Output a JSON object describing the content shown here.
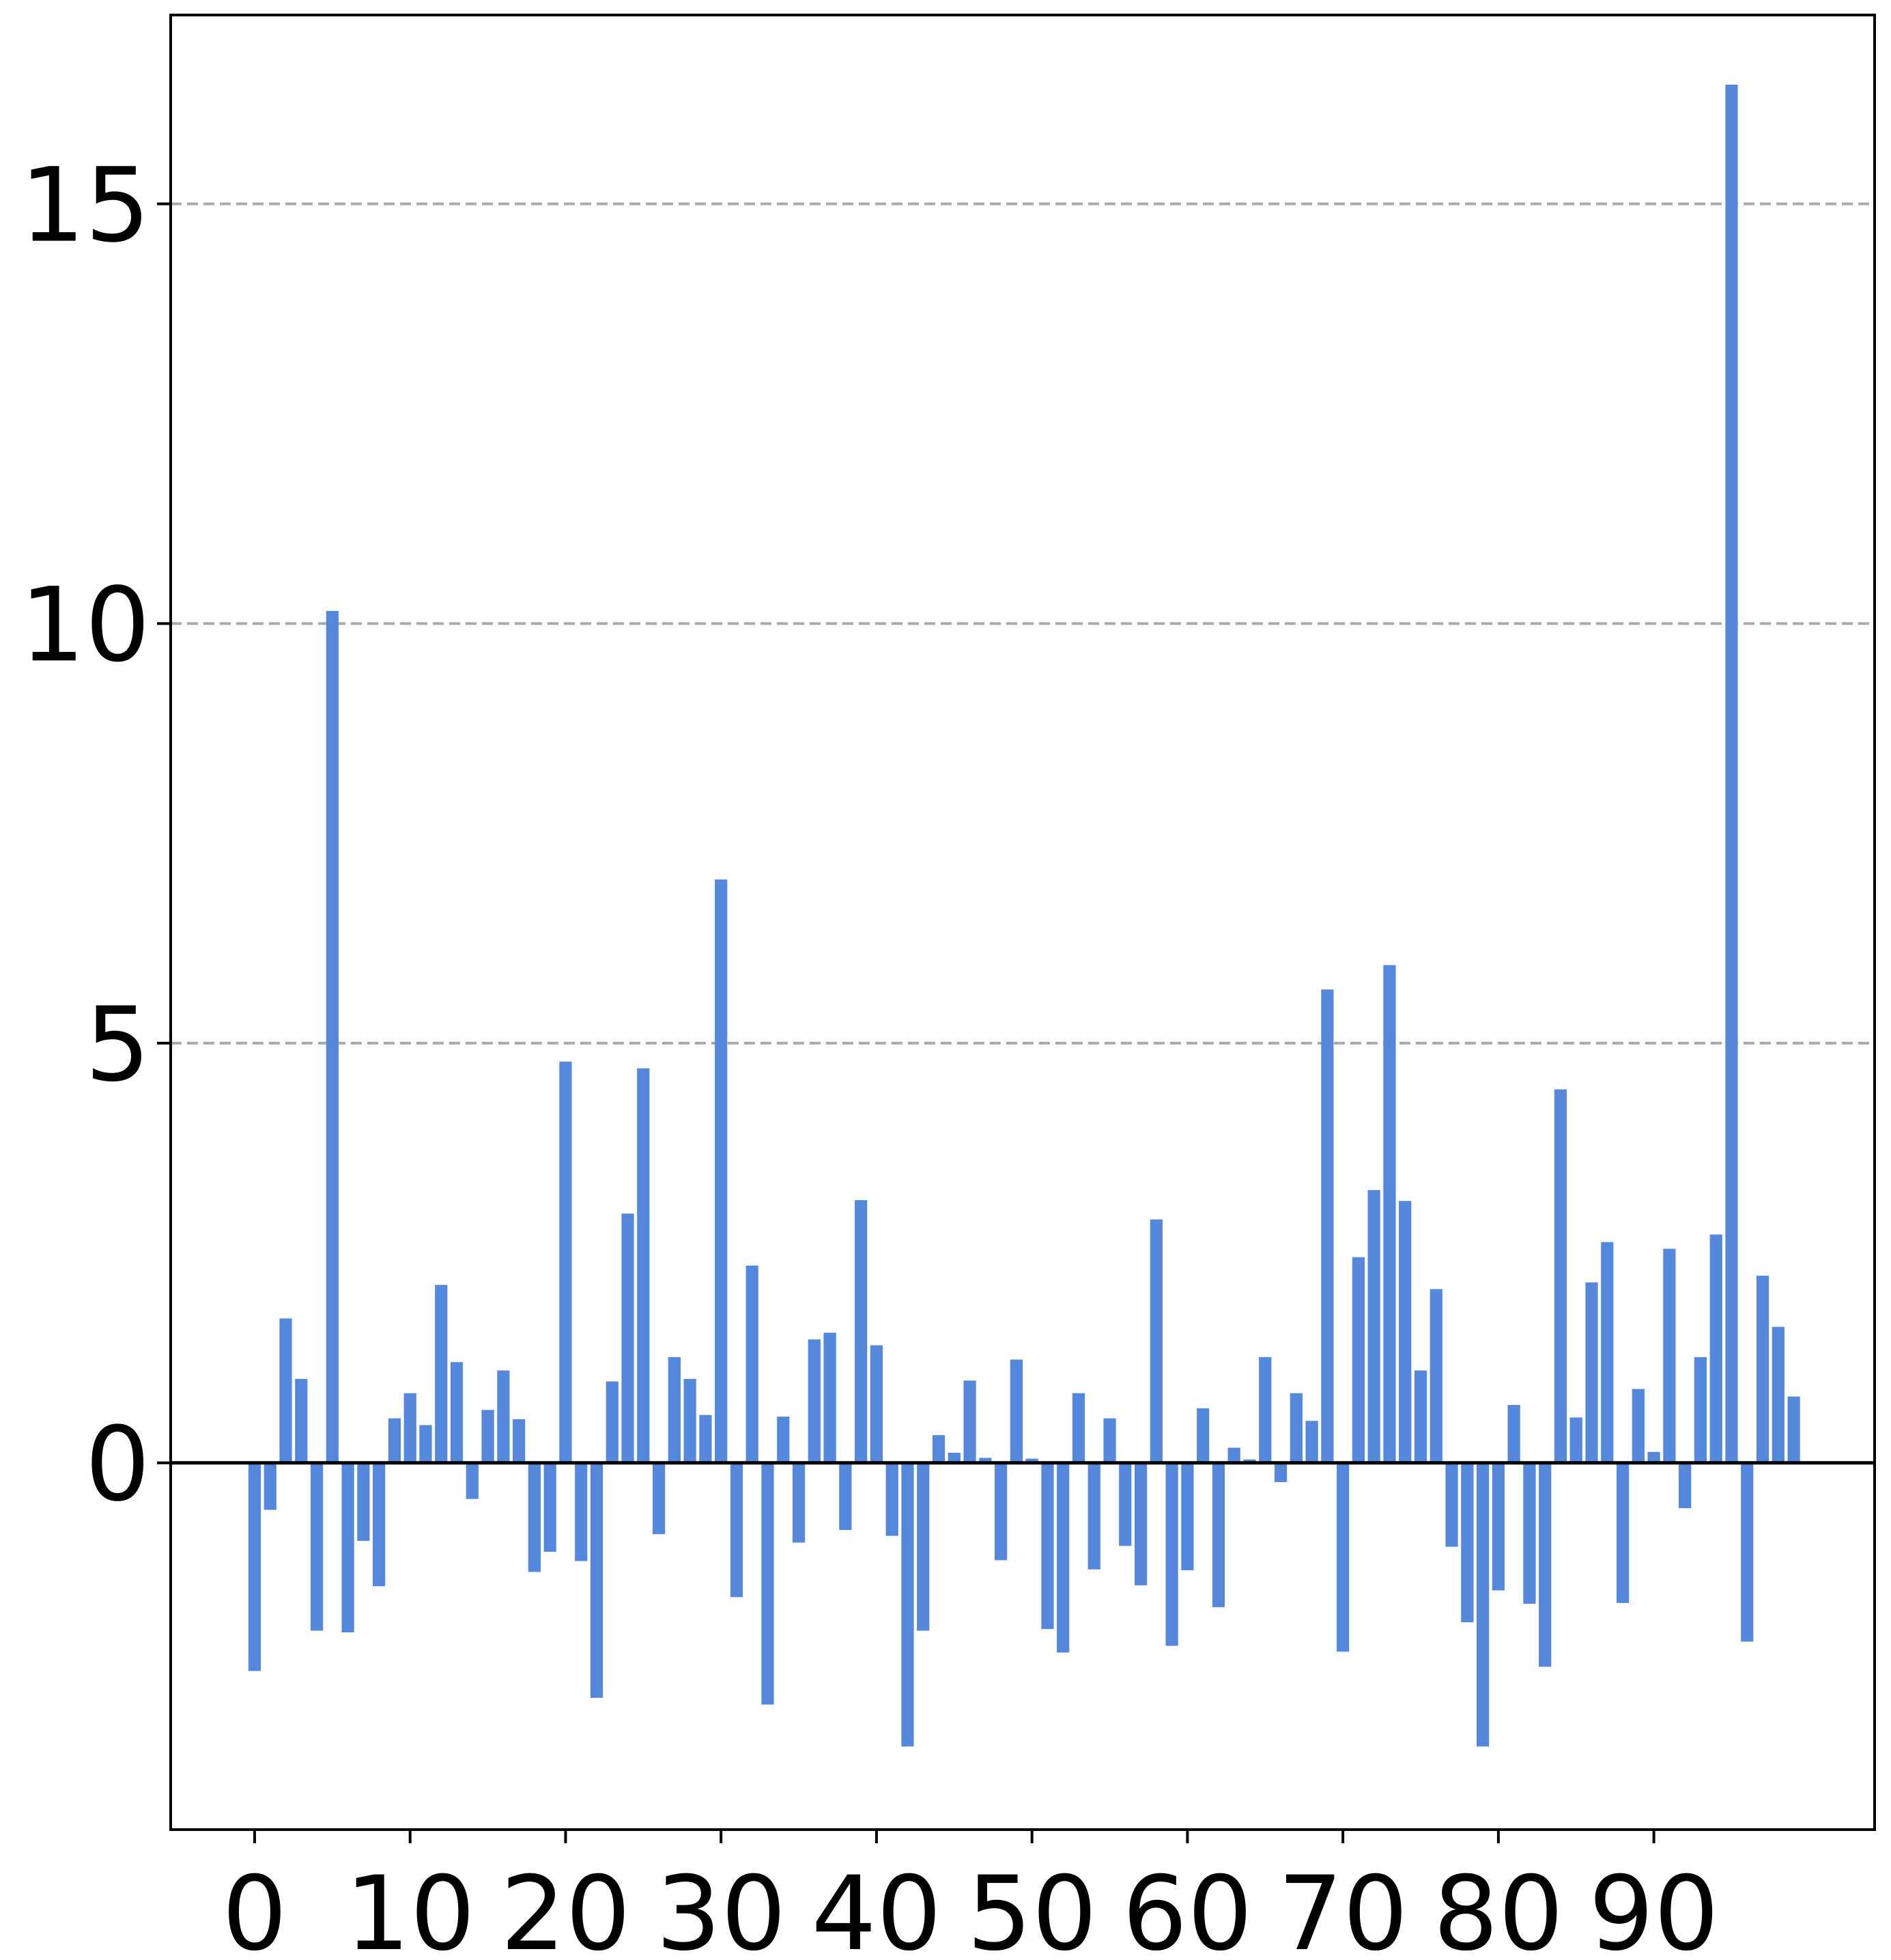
{
  "chart_data": {
    "type": "bar",
    "x": [
      0,
      1,
      2,
      3,
      4,
      5,
      6,
      7,
      8,
      9,
      10,
      11,
      12,
      13,
      14,
      15,
      16,
      17,
      18,
      19,
      20,
      21,
      22,
      23,
      24,
      25,
      26,
      27,
      28,
      29,
      30,
      31,
      32,
      33,
      34,
      35,
      36,
      37,
      38,
      39,
      40,
      41,
      42,
      43,
      44,
      45,
      46,
      47,
      48,
      49,
      50,
      51,
      52,
      53,
      54,
      55,
      56,
      57,
      58,
      59,
      60,
      61,
      62,
      63,
      64,
      65,
      66,
      67,
      68,
      69,
      70,
      71,
      72,
      73,
      74,
      75,
      76,
      77,
      78,
      79,
      80,
      81,
      82,
      83,
      84,
      85,
      86,
      87,
      88,
      89,
      90,
      91,
      92,
      93,
      94,
      95,
      96,
      97,
      98,
      99
    ],
    "values": [
      -2.48,
      -0.56,
      1.72,
      1.0,
      -2.0,
      10.15,
      -2.02,
      -0.93,
      -1.47,
      0.53,
      0.83,
      0.45,
      2.12,
      1.2,
      -0.43,
      0.63,
      1.1,
      0.52,
      -1.3,
      -1.06,
      4.78,
      -1.17,
      -2.8,
      0.97,
      2.97,
      4.7,
      -0.85,
      1.26,
      1.0,
      0.57,
      6.95,
      -1.6,
      2.35,
      -2.88,
      0.55,
      -0.95,
      1.47,
      1.55,
      -0.8,
      3.13,
      1.4,
      -0.87,
      -3.38,
      -2.0,
      0.33,
      0.12,
      0.98,
      0.06,
      -1.16,
      1.23,
      0.05,
      -1.98,
      -2.26,
      0.83,
      -1.27,
      0.53,
      -0.99,
      -1.46,
      2.9,
      -2.18,
      -1.28,
      0.65,
      -1.72,
      0.18,
      0.04,
      1.26,
      -0.23,
      0.83,
      0.5,
      5.64,
      -2.25,
      2.45,
      3.25,
      5.93,
      3.12,
      1.1,
      2.07,
      -1.0,
      -1.9,
      -3.38,
      -1.52,
      0.69,
      -1.68,
      -2.43,
      4.45,
      0.54,
      2.15,
      2.63,
      -1.67,
      0.88,
      0.13,
      2.55,
      -0.54,
      1.26,
      2.72,
      16.42,
      -2.13,
      2.23,
      1.62,
      0.79
    ],
    "color": "#5588dd",
    "xlim": [
      -5.4,
      104.2
    ],
    "xticks": [
      0,
      10,
      20,
      30,
      40,
      50,
      60,
      70,
      80,
      90
    ],
    "ylim": [
      -4.37,
      17.25
    ],
    "yticks": [
      0,
      5,
      10,
      15
    ],
    "grid": true
  }
}
